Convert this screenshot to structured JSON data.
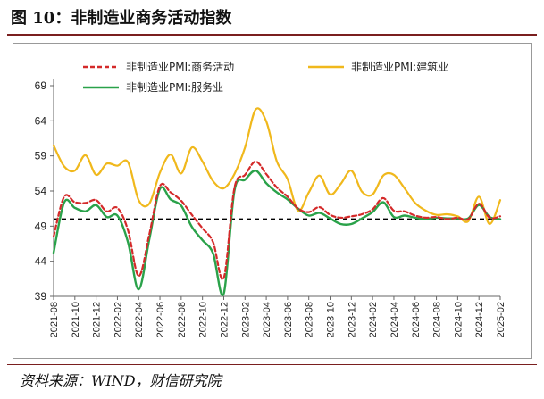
{
  "page": {
    "title": "图 10：非制造业商务活动指数",
    "source": "资料来源：WIND，财信研究院"
  },
  "colors": {
    "business": "#d42a2a",
    "construction": "#f0b81c",
    "services": "#2aa24a",
    "reference": "#000000"
  },
  "chart_data": {
    "type": "line",
    "title": "",
    "xlabel": "",
    "ylabel": "",
    "ylim": [
      39,
      69
    ],
    "yticks": [
      39,
      44,
      49,
      54,
      59,
      64,
      69
    ],
    "reference_line": 50,
    "grid": false,
    "legend_position": "top",
    "x": [
      "2021-08",
      "2021-09",
      "2021-10",
      "2021-11",
      "2021-12",
      "2022-01",
      "2022-02",
      "2022-03",
      "2022-04",
      "2022-05",
      "2022-06",
      "2022-07",
      "2022-08",
      "2022-09",
      "2022-10",
      "2022-11",
      "2022-12",
      "2023-01",
      "2023-02",
      "2023-03",
      "2023-04",
      "2023-05",
      "2023-06",
      "2023-07",
      "2023-08",
      "2023-09",
      "2023-10",
      "2023-11",
      "2023-12",
      "2024-01",
      "2024-02",
      "2024-03",
      "2024-04",
      "2024-05",
      "2024-06",
      "2024-07",
      "2024-08",
      "2024-09",
      "2024-10",
      "2024-11",
      "2024-12",
      "2025-01",
      "2025-02"
    ],
    "x_tick_labels": [
      "2021-08",
      "2021-10",
      "2021-12",
      "2022-02",
      "2022-04",
      "2022-06",
      "2022-08",
      "2022-10",
      "2022-12",
      "2023-02",
      "2023-04",
      "2023-06",
      "2023-08",
      "2023-10",
      "2023-12",
      "2024-02",
      "2024-04",
      "2024-06",
      "2024-08",
      "2024-10",
      "2024-12",
      "2025-02"
    ],
    "series": [
      {
        "name": "非制造业PMI:商务活动",
        "values": [
          47.5,
          53.2,
          52.4,
          52.3,
          52.7,
          51.1,
          51.6,
          48.4,
          41.9,
          47.8,
          54.7,
          53.8,
          52.6,
          50.6,
          48.7,
          46.7,
          41.6,
          54.4,
          56.3,
          58.2,
          56.4,
          54.5,
          53.2,
          51.5,
          51.0,
          51.7,
          50.6,
          50.2,
          50.4,
          50.7,
          51.4,
          53.0,
          51.2,
          51.1,
          50.5,
          50.2,
          50.3,
          50.0,
          50.2,
          50.0,
          52.2,
          50.2,
          50.4
        ]
      },
      {
        "name": "非制造业PMI:建筑业",
        "values": [
          60.5,
          57.5,
          56.9,
          59.1,
          56.3,
          57.9,
          57.6,
          58.1,
          52.7,
          52.2,
          56.6,
          59.2,
          56.5,
          60.2,
          58.2,
          55.4,
          54.4,
          56.4,
          60.2,
          65.6,
          63.9,
          58.2,
          55.7,
          51.2,
          53.8,
          56.2,
          53.5,
          55.0,
          56.9,
          53.9,
          53.5,
          56.2,
          56.3,
          54.4,
          52.3,
          51.2,
          50.6,
          50.7,
          50.4,
          49.7,
          53.2,
          49.3,
          52.7
        ]
      },
      {
        "name": "非制造业PMI:服务业",
        "values": [
          45.2,
          52.4,
          51.6,
          51.1,
          52.0,
          50.3,
          50.5,
          46.7,
          40.0,
          47.1,
          54.3,
          52.8,
          51.9,
          48.9,
          47.0,
          45.1,
          39.4,
          54.0,
          55.6,
          56.9,
          55.1,
          53.8,
          52.8,
          51.5,
          50.5,
          50.9,
          50.1,
          49.3,
          49.3,
          50.1,
          51.0,
          52.4,
          50.3,
          50.5,
          50.2,
          50.0,
          50.2,
          50.1,
          50.1,
          50.1,
          52.0,
          50.3,
          50.0
        ]
      }
    ]
  }
}
